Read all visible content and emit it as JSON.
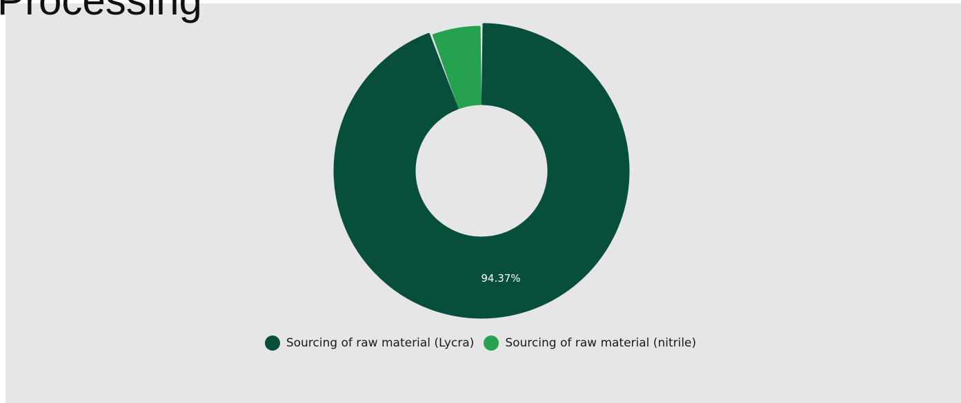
{
  "page": {
    "title": "Processing"
  },
  "chart_data": {
    "type": "pie",
    "variant": "donut",
    "title": "",
    "series": [
      {
        "name": "Sourcing of raw material (Lycra)",
        "value": 94.37,
        "label": "94.37%",
        "color": "#074f3c"
      },
      {
        "name": "Sourcing of raw material (nitrile)",
        "value": 5.63,
        "label": "",
        "color": "#25a14f"
      }
    ],
    "legend_position": "bottom",
    "background": "#e6e6e6"
  }
}
